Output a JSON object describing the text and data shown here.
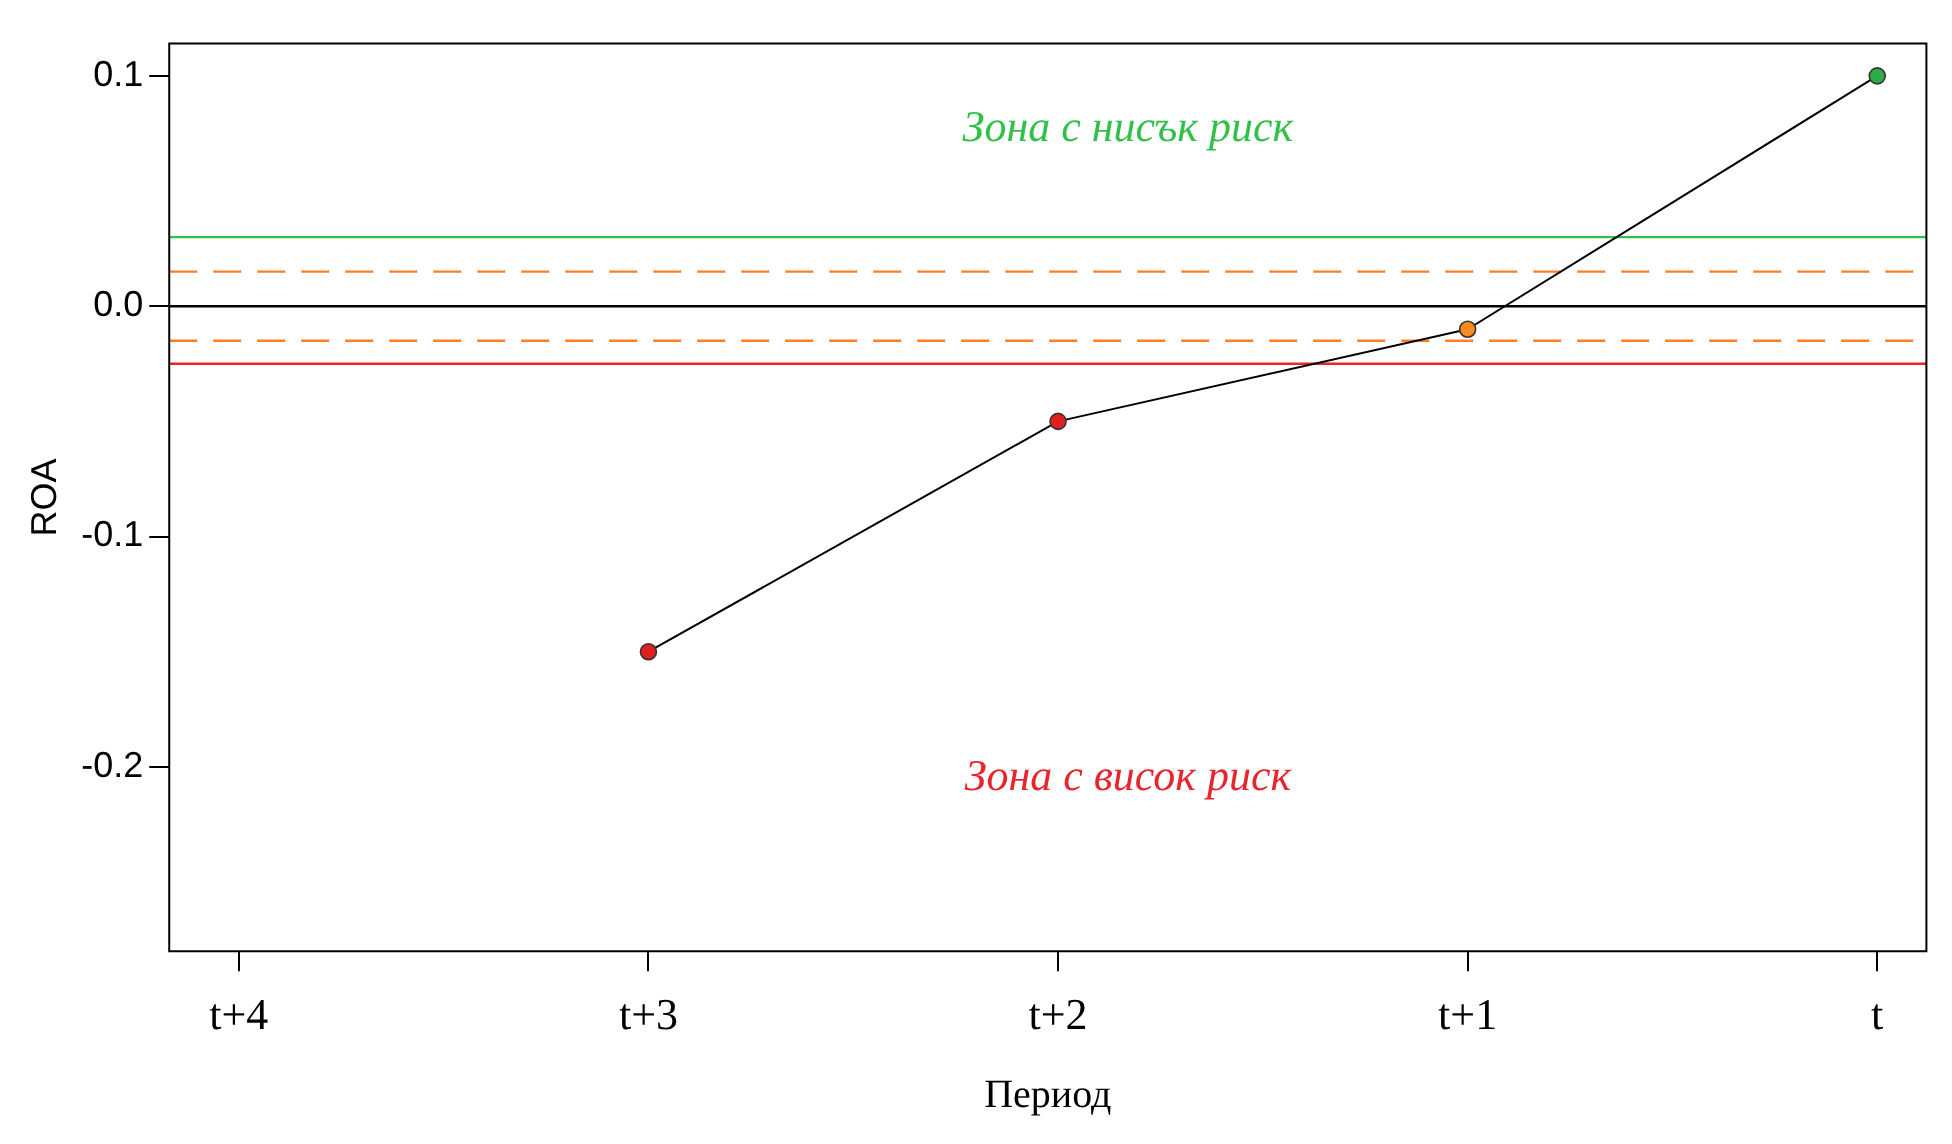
{
  "chart_data": {
    "type": "line",
    "xlabel": "Период",
    "ylabel": "ROA",
    "categories": [
      "t+4",
      "t+3",
      "t+2",
      "t+1",
      "t"
    ],
    "series": [
      {
        "color": "#000000",
        "colors": [
          null,
          "#e0201f",
          "#e0201f",
          "#ff8a1c",
          "#2eaa4a"
        ],
        "values": [
          null,
          -0.15,
          -0.05,
          -0.01,
          0.1
        ]
      }
    ],
    "ylim": [
      -0.28,
      0.114
    ],
    "yticks": [
      -0.2,
      -0.1,
      {
        "value": 0,
        "label": "0.0"
      },
      0.1
    ],
    "grid": false,
    "legend": false,
    "marker": "circle",
    "line_style": "solid",
    "ref_lines": [
      {
        "axis": "y",
        "value": 0.03,
        "color": "#33c04a",
        "line_style": "solid"
      },
      {
        "axis": "y",
        "value": 0.015,
        "color": "#ff7f24",
        "line_style": "dashed"
      },
      {
        "axis": "y",
        "value": 0,
        "color": "#000000",
        "line_style": "solid"
      },
      {
        "axis": "y",
        "value": -0.015,
        "color": "#ff7f24",
        "line_style": "dashed"
      },
      {
        "axis": "y",
        "value": -0.025,
        "color": "#e8252b",
        "line_style": "solid"
      }
    ],
    "annotations": [
      "Зона с нисък риск",
      "Зона с висок риск"
    ]
  }
}
